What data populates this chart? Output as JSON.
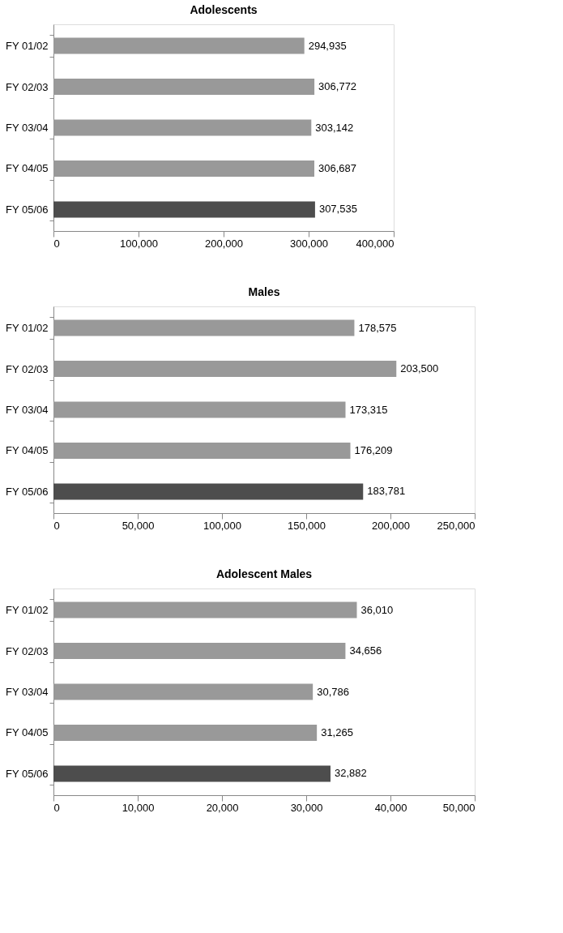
{
  "chart_data": [
    {
      "type": "bar",
      "orientation": "horizontal",
      "title": "Adolescents",
      "categories": [
        "FY 01/02",
        "FY 02/03",
        "FY 03/04",
        "FY 04/05",
        "FY 05/06"
      ],
      "values": [
        294935,
        306772,
        303142,
        306687,
        307535
      ],
      "value_labels": [
        "294,935",
        "306,772",
        "303,142",
        "306,687",
        "307,535"
      ],
      "colors": [
        "#999999",
        "#999999",
        "#999999",
        "#999999",
        "#4d4d4d"
      ],
      "xlim": [
        0,
        400000
      ],
      "xticks": [
        0,
        {
          "value": 100000,
          "label": "100,000"
        },
        {
          "value": 200000,
          "label": "200,000"
        },
        {
          "value": 300000,
          "label": "300,000"
        },
        {
          "value": 400000,
          "label": "400,000"
        }
      ],
      "grid": false,
      "legend": false
    },
    {
      "type": "bar",
      "orientation": "horizontal",
      "title": "Males",
      "categories": [
        "FY 01/02",
        "FY 02/03",
        "FY 03/04",
        "FY 04/05",
        "FY 05/06"
      ],
      "values": [
        178575,
        203500,
        173315,
        176209,
        183781
      ],
      "value_labels": [
        "178,575",
        "203,500",
        "173,315",
        "176,209",
        "183,781"
      ],
      "colors": [
        "#999999",
        "#999999",
        "#999999",
        "#999999",
        "#4d4d4d"
      ],
      "xlim": [
        0,
        250000
      ],
      "xticks": [
        0,
        {
          "value": 50000,
          "label": "50,000"
        },
        {
          "value": 100000,
          "label": "100,000"
        },
        {
          "value": 150000,
          "label": "150,000"
        },
        {
          "value": 200000,
          "label": "200,000"
        },
        {
          "value": 250000,
          "label": "250,000"
        }
      ],
      "grid": false,
      "legend": false
    },
    {
      "type": "bar",
      "orientation": "horizontal",
      "title": "Adolescent Males",
      "categories": [
        "FY 01/02",
        "FY 02/03",
        "FY 03/04",
        "FY 04/05",
        "FY 05/06"
      ],
      "values": [
        36010,
        34656,
        30786,
        31265,
        32882
      ],
      "value_labels": [
        "36,010",
        "34,656",
        "30,786",
        "31,265",
        "32,882"
      ],
      "colors": [
        "#999999",
        "#999999",
        "#999999",
        "#999999",
        "#4d4d4d"
      ],
      "xlim": [
        0,
        50000
      ],
      "xticks": [
        0,
        {
          "value": 10000,
          "label": "10,000"
        },
        {
          "value": 20000,
          "label": "20,000"
        },
        {
          "value": 30000,
          "label": "30,000"
        },
        {
          "value": 40000,
          "label": "40,000"
        },
        {
          "value": 50000,
          "label": "50,000"
        }
      ],
      "grid": false,
      "legend": false
    }
  ]
}
